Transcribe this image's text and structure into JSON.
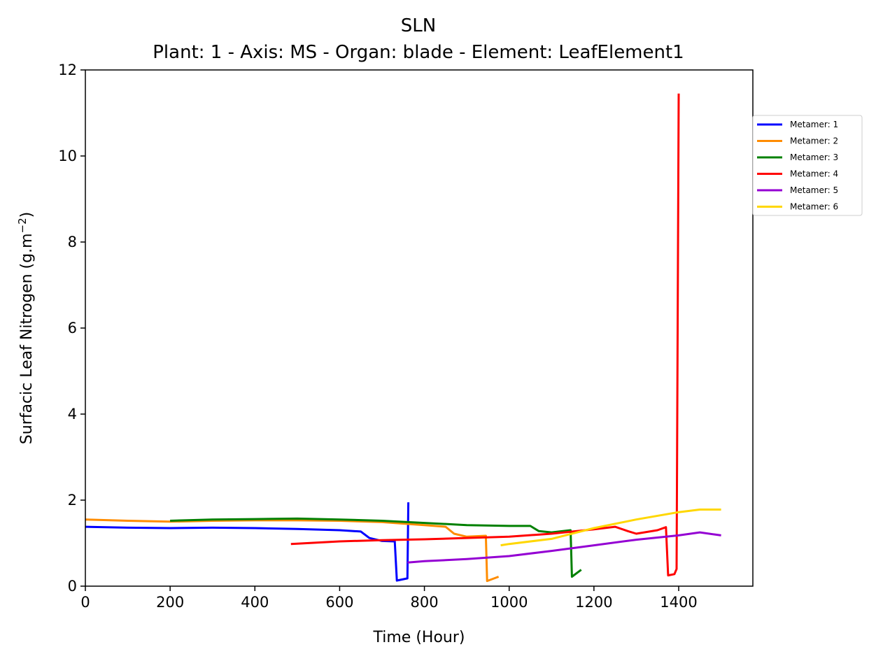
{
  "chart_data": {
    "type": "line",
    "title": "SLN",
    "subtitle": "Plant: 1 - Axis: MS - Organ: blade - Element: LeafElement1",
    "xlabel": "Time (Hour)",
    "ylabel": "Surfacic Leaf Nitrogen (g.m",
    "ylabel_sup": "−2",
    "ylabel_close": ")",
    "xlim": [
      0,
      1575
    ],
    "ylim": [
      0,
      12
    ],
    "xticks": [
      0,
      200,
      400,
      600,
      800,
      1000,
      1200,
      1400
    ],
    "yticks": [
      0,
      2,
      4,
      6,
      8,
      10,
      12
    ],
    "grid": false,
    "legend_position": "outside-top-right",
    "series": [
      {
        "name": "Metamer: 1",
        "color": "#0000ff",
        "x": [
          0,
          100,
          200,
          300,
          400,
          500,
          600,
          650,
          670,
          700,
          730,
          735,
          760,
          762
        ],
        "y": [
          1.38,
          1.36,
          1.35,
          1.36,
          1.35,
          1.33,
          1.3,
          1.27,
          1.12,
          1.05,
          1.04,
          0.13,
          0.18,
          1.95
        ]
      },
      {
        "name": "Metamer: 2",
        "color": "#ff8c00",
        "x": [
          0,
          100,
          200,
          300,
          400,
          500,
          600,
          700,
          800,
          850,
          870,
          900,
          945,
          948,
          975
        ],
        "y": [
          1.55,
          1.52,
          1.5,
          1.52,
          1.53,
          1.53,
          1.52,
          1.49,
          1.42,
          1.38,
          1.22,
          1.15,
          1.17,
          0.12,
          0.22
        ]
      },
      {
        "name": "Metamer: 3",
        "color": "#008000",
        "x": [
          200,
          300,
          400,
          500,
          600,
          700,
          800,
          900,
          1000,
          1050,
          1070,
          1100,
          1145,
          1148,
          1170
        ],
        "y": [
          1.52,
          1.55,
          1.56,
          1.57,
          1.55,
          1.52,
          1.47,
          1.42,
          1.4,
          1.4,
          1.28,
          1.25,
          1.3,
          0.22,
          0.38
        ]
      },
      {
        "name": "Metamer: 4",
        "color": "#ff0000",
        "x": [
          485,
          600,
          700,
          800,
          900,
          1000,
          1100,
          1200,
          1250,
          1280,
          1300,
          1350,
          1370,
          1375,
          1390,
          1395,
          1400
        ],
        "y": [
          0.98,
          1.04,
          1.07,
          1.09,
          1.12,
          1.15,
          1.22,
          1.32,
          1.38,
          1.28,
          1.22,
          1.3,
          1.37,
          0.25,
          0.28,
          0.4,
          11.45
        ]
      },
      {
        "name": "Metamer: 5",
        "color": "#9400d3",
        "x": [
          760,
          800,
          900,
          1000,
          1100,
          1200,
          1300,
          1400,
          1450,
          1500
        ],
        "y": [
          0.55,
          0.58,
          0.63,
          0.7,
          0.82,
          0.95,
          1.08,
          1.18,
          1.25,
          1.18
        ]
      },
      {
        "name": "Metamer: 6",
        "color": "#ffd700",
        "x": [
          980,
          1000,
          1100,
          1200,
          1300,
          1400,
          1450,
          1500
        ],
        "y": [
          0.95,
          0.98,
          1.1,
          1.35,
          1.55,
          1.72,
          1.78,
          1.78
        ]
      }
    ]
  }
}
